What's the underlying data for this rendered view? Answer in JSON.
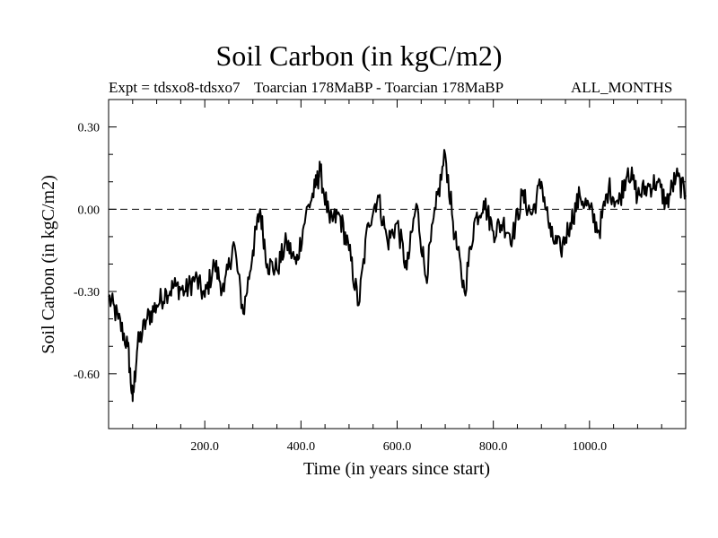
{
  "chart_data": {
    "type": "line",
    "title": "Soil Carbon (in kgC/m2)",
    "subtitle_left": "Expt = tdsxo8-tdsxo7",
    "subtitle_center": "Toarcian 178MaBP - Toarcian 178MaBP",
    "subtitle_right": "ALL_MONTHS",
    "xlabel": "Time (in years since start)",
    "ylabel": "Soil Carbon (in kgC/m2)",
    "xlim": [
      0,
      1200
    ],
    "ylim": [
      -0.8,
      0.4
    ],
    "x_ticks": [
      200,
      400,
      600,
      800,
      1000
    ],
    "x_tick_labels": [
      "200.0",
      "400.0",
      "600.0",
      "800.0",
      "1000.0"
    ],
    "y_ticks": [
      0.3,
      0.0,
      -0.3,
      -0.6
    ],
    "y_tick_labels": [
      "0.30",
      "0.00",
      "-0.30",
      "-0.60"
    ],
    "reference_line": {
      "y": 0.0,
      "style": "dashed"
    },
    "series": [
      {
        "name": "Soil Carbon",
        "x": [
          0,
          20,
          40,
          50,
          60,
          80,
          100,
          120,
          140,
          160,
          180,
          200,
          220,
          240,
          260,
          280,
          300,
          315,
          330,
          350,
          370,
          390,
          410,
          430,
          440,
          460,
          480,
          500,
          520,
          540,
          560,
          580,
          600,
          620,
          640,
          660,
          680,
          700,
          720,
          740,
          760,
          780,
          800,
          820,
          840,
          860,
          880,
          900,
          920,
          940,
          960,
          980,
          1000,
          1020,
          1040,
          1060,
          1080,
          1100,
          1120,
          1140,
          1160,
          1180,
          1200
        ],
        "values": [
          -0.32,
          -0.4,
          -0.5,
          -0.7,
          -0.5,
          -0.4,
          -0.35,
          -0.3,
          -0.28,
          -0.3,
          -0.25,
          -0.32,
          -0.2,
          -0.3,
          -0.12,
          -0.38,
          -0.15,
          0.0,
          -0.2,
          -0.22,
          -0.12,
          -0.2,
          -0.02,
          0.08,
          0.14,
          -0.05,
          -0.02,
          -0.15,
          -0.35,
          -0.05,
          0.05,
          -0.12,
          -0.05,
          -0.22,
          0.02,
          -0.25,
          0.0,
          0.2,
          -0.1,
          -0.3,
          -0.05,
          0.03,
          -0.08,
          -0.05,
          -0.1,
          0.05,
          -0.02,
          0.1,
          -0.1,
          -0.15,
          -0.05,
          0.05,
          0.0,
          -0.08,
          0.08,
          0.02,
          0.15,
          0.05,
          0.08,
          0.1,
          0.02,
          0.12,
          0.05
        ]
      }
    ]
  }
}
